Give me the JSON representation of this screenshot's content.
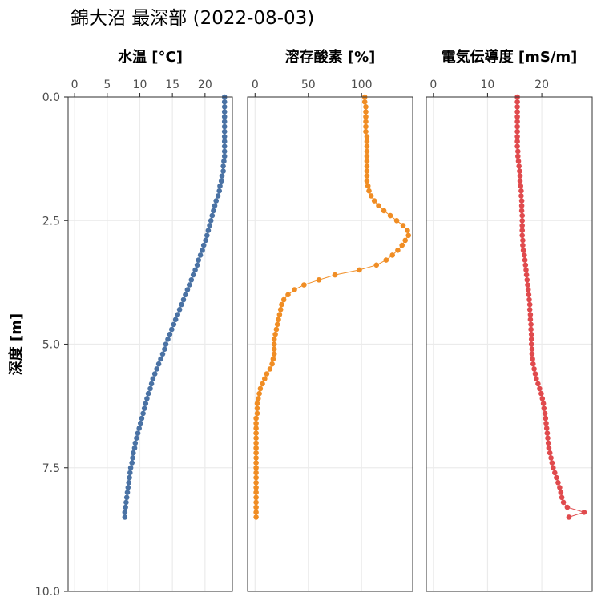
{
  "chart_data": {
    "type": "scatter",
    "title": "錦大沼 最深部 (2022-08-03)",
    "ylabel": "深度 [m]",
    "ylim": [
      0,
      10
    ],
    "y_reversed": true,
    "y_ticks": [
      "0.0",
      "2.5",
      "5.0",
      "7.5",
      "10.0"
    ],
    "y_tick_values": [
      0,
      2.5,
      5,
      7.5,
      10
    ],
    "grid": true,
    "panels": [
      {
        "title": "水温 [°C]",
        "color": "#4a72a4",
        "xlim": [
          -1,
          24.2
        ],
        "x_tick_values": [
          0,
          5,
          10,
          15,
          20
        ],
        "x_ticks": [
          "0",
          "5",
          "10",
          "15",
          "20"
        ],
        "points": [
          [
            23.0,
            0.0
          ],
          [
            23.0,
            0.1
          ],
          [
            23.0,
            0.2
          ],
          [
            23.0,
            0.3
          ],
          [
            23.0,
            0.4
          ],
          [
            23.0,
            0.5
          ],
          [
            23.0,
            0.6
          ],
          [
            23.0,
            0.7
          ],
          [
            23.0,
            0.8
          ],
          [
            23.0,
            0.9
          ],
          [
            23.0,
            1.0
          ],
          [
            23.0,
            1.1
          ],
          [
            23.0,
            1.2
          ],
          [
            22.9,
            1.3
          ],
          [
            22.8,
            1.4
          ],
          [
            22.8,
            1.5
          ],
          [
            22.6,
            1.6
          ],
          [
            22.5,
            1.7
          ],
          [
            22.3,
            1.8
          ],
          [
            22.2,
            1.9
          ],
          [
            22.0,
            2.0
          ],
          [
            21.7,
            2.1
          ],
          [
            21.5,
            2.2
          ],
          [
            21.3,
            2.3
          ],
          [
            21.1,
            2.4
          ],
          [
            20.9,
            2.5
          ],
          [
            20.7,
            2.6
          ],
          [
            20.5,
            2.7
          ],
          [
            20.3,
            2.8
          ],
          [
            20.1,
            2.9
          ],
          [
            19.8,
            3.0
          ],
          [
            19.6,
            3.1
          ],
          [
            19.3,
            3.2
          ],
          [
            19.0,
            3.3
          ],
          [
            18.8,
            3.4
          ],
          [
            18.5,
            3.5
          ],
          [
            18.2,
            3.6
          ],
          [
            17.9,
            3.7
          ],
          [
            17.6,
            3.8
          ],
          [
            17.3,
            3.9
          ],
          [
            17.0,
            4.0
          ],
          [
            16.7,
            4.1
          ],
          [
            16.4,
            4.2
          ],
          [
            16.1,
            4.3
          ],
          [
            15.8,
            4.4
          ],
          [
            15.5,
            4.5
          ],
          [
            15.2,
            4.6
          ],
          [
            14.9,
            4.7
          ],
          [
            14.6,
            4.8
          ],
          [
            14.3,
            4.9
          ],
          [
            14.0,
            5.0
          ],
          [
            13.8,
            5.1
          ],
          [
            13.5,
            5.2
          ],
          [
            13.2,
            5.3
          ],
          [
            12.9,
            5.4
          ],
          [
            12.6,
            5.5
          ],
          [
            12.3,
            5.6
          ],
          [
            12.0,
            5.7
          ],
          [
            11.8,
            5.8
          ],
          [
            11.6,
            5.9
          ],
          [
            11.3,
            6.0
          ],
          [
            11.1,
            6.1
          ],
          [
            10.9,
            6.2
          ],
          [
            10.7,
            6.3
          ],
          [
            10.5,
            6.4
          ],
          [
            10.3,
            6.5
          ],
          [
            10.1,
            6.6
          ],
          [
            9.9,
            6.7
          ],
          [
            9.7,
            6.8
          ],
          [
            9.5,
            6.9
          ],
          [
            9.3,
            7.0
          ],
          [
            9.2,
            7.1
          ],
          [
            9.0,
            7.2
          ],
          [
            8.9,
            7.3
          ],
          [
            8.8,
            7.4
          ],
          [
            8.6,
            7.5
          ],
          [
            8.5,
            7.6
          ],
          [
            8.4,
            7.7
          ],
          [
            8.3,
            7.8
          ],
          [
            8.2,
            7.9
          ],
          [
            8.1,
            8.0
          ],
          [
            8.0,
            8.1
          ],
          [
            7.9,
            8.2
          ],
          [
            7.8,
            8.3
          ],
          [
            7.7,
            8.4
          ],
          [
            7.7,
            8.5
          ]
        ]
      },
      {
        "title": "溶存酸素 [%]",
        "color": "#f08d24",
        "xlim": [
          -7,
          148
        ],
        "x_tick_values": [
          0,
          50,
          100
        ],
        "x_ticks": [
          "0",
          "50",
          "100"
        ],
        "points": [
          [
            103,
            0.0
          ],
          [
            103,
            0.1
          ],
          [
            104,
            0.2
          ],
          [
            104,
            0.3
          ],
          [
            104,
            0.4
          ],
          [
            104,
            0.5
          ],
          [
            104,
            0.6
          ],
          [
            104,
            0.7
          ],
          [
            105,
            0.8
          ],
          [
            105,
            0.9
          ],
          [
            105,
            1.0
          ],
          [
            105,
            1.1
          ],
          [
            105,
            1.2
          ],
          [
            105,
            1.3
          ],
          [
            105,
            1.4
          ],
          [
            105,
            1.5
          ],
          [
            105,
            1.6
          ],
          [
            105,
            1.7
          ],
          [
            106,
            1.8
          ],
          [
            107,
            1.9
          ],
          [
            109,
            2.0
          ],
          [
            112,
            2.1
          ],
          [
            116,
            2.2
          ],
          [
            121,
            2.3
          ],
          [
            127,
            2.4
          ],
          [
            133,
            2.5
          ],
          [
            139,
            2.6
          ],
          [
            143,
            2.7
          ],
          [
            144,
            2.8
          ],
          [
            141,
            2.9
          ],
          [
            138,
            3.0
          ],
          [
            134,
            3.1
          ],
          [
            129,
            3.2
          ],
          [
            123,
            3.3
          ],
          [
            114,
            3.4
          ],
          [
            98,
            3.5
          ],
          [
            75,
            3.6
          ],
          [
            60,
            3.7
          ],
          [
            46,
            3.8
          ],
          [
            37,
            3.9
          ],
          [
            31,
            4.0
          ],
          [
            27,
            4.1
          ],
          [
            25,
            4.2
          ],
          [
            24,
            4.3
          ],
          [
            23,
            4.4
          ],
          [
            22,
            4.5
          ],
          [
            21,
            4.6
          ],
          [
            20,
            4.7
          ],
          [
            19,
            4.8
          ],
          [
            18,
            4.9
          ],
          [
            18,
            5.0
          ],
          [
            18,
            5.1
          ],
          [
            18,
            5.2
          ],
          [
            17,
            5.3
          ],
          [
            16,
            5.4
          ],
          [
            14,
            5.5
          ],
          [
            11,
            5.6
          ],
          [
            9,
            5.7
          ],
          [
            7,
            5.8
          ],
          [
            5,
            5.9
          ],
          [
            4,
            6.0
          ],
          [
            3,
            6.1
          ],
          [
            2,
            6.2
          ],
          [
            2,
            6.3
          ],
          [
            2,
            6.4
          ],
          [
            1,
            6.5
          ],
          [
            1,
            6.6
          ],
          [
            1,
            6.7
          ],
          [
            1,
            6.8
          ],
          [
            1,
            6.9
          ],
          [
            1,
            7.0
          ],
          [
            1,
            7.1
          ],
          [
            1,
            7.2
          ],
          [
            1,
            7.3
          ],
          [
            1,
            7.4
          ],
          [
            1,
            7.5
          ],
          [
            1,
            7.6
          ],
          [
            1,
            7.7
          ],
          [
            1,
            7.8
          ],
          [
            1,
            7.9
          ],
          [
            1,
            8.0
          ],
          [
            1,
            8.1
          ],
          [
            1,
            8.2
          ],
          [
            1,
            8.3
          ],
          [
            1,
            8.4
          ],
          [
            1,
            8.5
          ]
        ]
      },
      {
        "title": "電気伝導度 [mS/m]",
        "color": "#e04a4d",
        "xlim": [
          -1.3,
          29.3
        ],
        "x_tick_values": [
          0,
          10,
          20
        ],
        "x_ticks": [
          "0",
          "10",
          "20"
        ],
        "points": [
          [
            15.5,
            0.0
          ],
          [
            15.5,
            0.1
          ],
          [
            15.5,
            0.2
          ],
          [
            15.5,
            0.3
          ],
          [
            15.5,
            0.4
          ],
          [
            15.5,
            0.5
          ],
          [
            15.5,
            0.6
          ],
          [
            15.5,
            0.7
          ],
          [
            15.5,
            0.8
          ],
          [
            15.5,
            0.9
          ],
          [
            15.5,
            1.0
          ],
          [
            15.6,
            1.1
          ],
          [
            15.6,
            1.2
          ],
          [
            15.7,
            1.3
          ],
          [
            15.8,
            1.4
          ],
          [
            15.9,
            1.5
          ],
          [
            16.0,
            1.6
          ],
          [
            16.0,
            1.7
          ],
          [
            16.1,
            1.8
          ],
          [
            16.2,
            1.9
          ],
          [
            16.2,
            2.0
          ],
          [
            16.3,
            2.1
          ],
          [
            16.3,
            2.2
          ],
          [
            16.3,
            2.3
          ],
          [
            16.4,
            2.4
          ],
          [
            16.4,
            2.5
          ],
          [
            16.4,
            2.6
          ],
          [
            16.4,
            2.7
          ],
          [
            16.4,
            2.8
          ],
          [
            16.5,
            2.9
          ],
          [
            16.5,
            3.0
          ],
          [
            16.6,
            3.1
          ],
          [
            16.8,
            3.2
          ],
          [
            16.9,
            3.3
          ],
          [
            17.0,
            3.4
          ],
          [
            17.1,
            3.5
          ],
          [
            17.2,
            3.6
          ],
          [
            17.3,
            3.7
          ],
          [
            17.4,
            3.8
          ],
          [
            17.5,
            3.9
          ],
          [
            17.6,
            4.0
          ],
          [
            17.7,
            4.1
          ],
          [
            17.8,
            4.2
          ],
          [
            17.8,
            4.3
          ],
          [
            17.9,
            4.4
          ],
          [
            17.9,
            4.5
          ],
          [
            18.0,
            4.6
          ],
          [
            18.0,
            4.7
          ],
          [
            18.1,
            4.8
          ],
          [
            18.1,
            4.9
          ],
          [
            18.1,
            5.0
          ],
          [
            18.2,
            5.1
          ],
          [
            18.2,
            5.2
          ],
          [
            18.3,
            5.3
          ],
          [
            18.4,
            5.4
          ],
          [
            18.6,
            5.5
          ],
          [
            18.8,
            5.6
          ],
          [
            19.0,
            5.7
          ],
          [
            19.3,
            5.8
          ],
          [
            19.6,
            5.9
          ],
          [
            19.9,
            6.0
          ],
          [
            20.1,
            6.1
          ],
          [
            20.3,
            6.2
          ],
          [
            20.4,
            6.3
          ],
          [
            20.6,
            6.4
          ],
          [
            20.7,
            6.5
          ],
          [
            20.8,
            6.6
          ],
          [
            20.9,
            6.7
          ],
          [
            21.0,
            6.8
          ],
          [
            21.1,
            6.9
          ],
          [
            21.2,
            7.0
          ],
          [
            21.3,
            7.1
          ],
          [
            21.5,
            7.2
          ],
          [
            21.7,
            7.3
          ],
          [
            21.9,
            7.4
          ],
          [
            22.1,
            7.5
          ],
          [
            22.4,
            7.6
          ],
          [
            22.7,
            7.7
          ],
          [
            23.0,
            7.8
          ],
          [
            23.3,
            7.9
          ],
          [
            23.5,
            8.0
          ],
          [
            23.7,
            8.1
          ],
          [
            24.0,
            8.2
          ],
          [
            24.7,
            8.3
          ],
          [
            27.8,
            8.4
          ],
          [
            25.0,
            8.5
          ]
        ]
      }
    ]
  }
}
